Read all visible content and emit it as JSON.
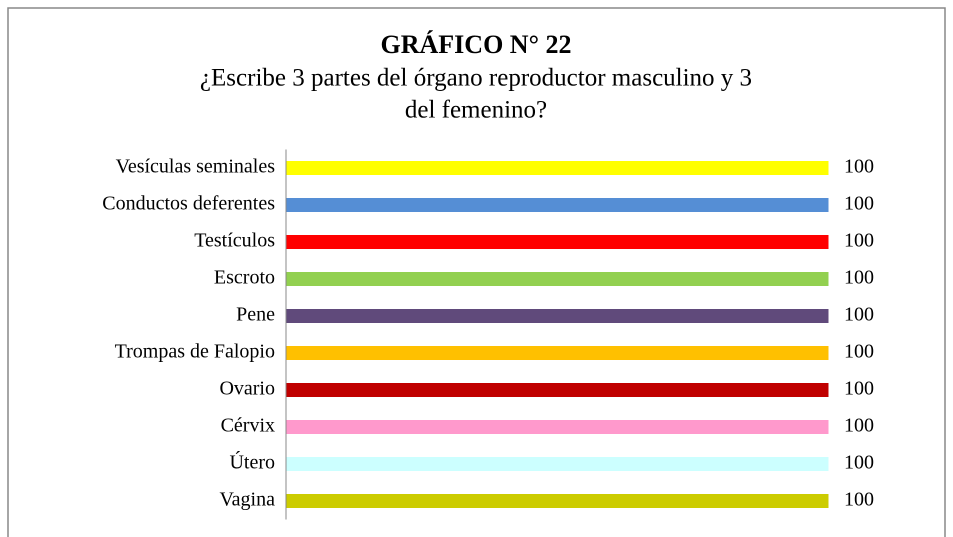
{
  "chart_data": {
    "type": "bar",
    "orientation": "horizontal",
    "title": "GRÁFICO N° 22",
    "subtitle": [
      "¿Escribe 3 partes del órgano reproductor masculino y 3",
      "del femenino?"
    ],
    "categories": [
      "Vesículas seminales",
      "Conductos deferentes",
      "Testículos",
      "Escroto",
      "Pene",
      "Trompas de Falopio",
      "Ovario",
      "Cérvix",
      "Útero",
      "Vagina"
    ],
    "values": [
      100,
      100,
      100,
      100,
      100,
      100,
      100,
      100,
      100,
      100
    ],
    "colors": [
      "#ffff00",
      "#558ed5",
      "#ff0000",
      "#92d050",
      "#604a7b",
      "#ffc000",
      "#c00000",
      "#ff99cc",
      "#ccffff",
      "#cccc00"
    ],
    "xlim": [
      0,
      100
    ],
    "grid": false
  }
}
